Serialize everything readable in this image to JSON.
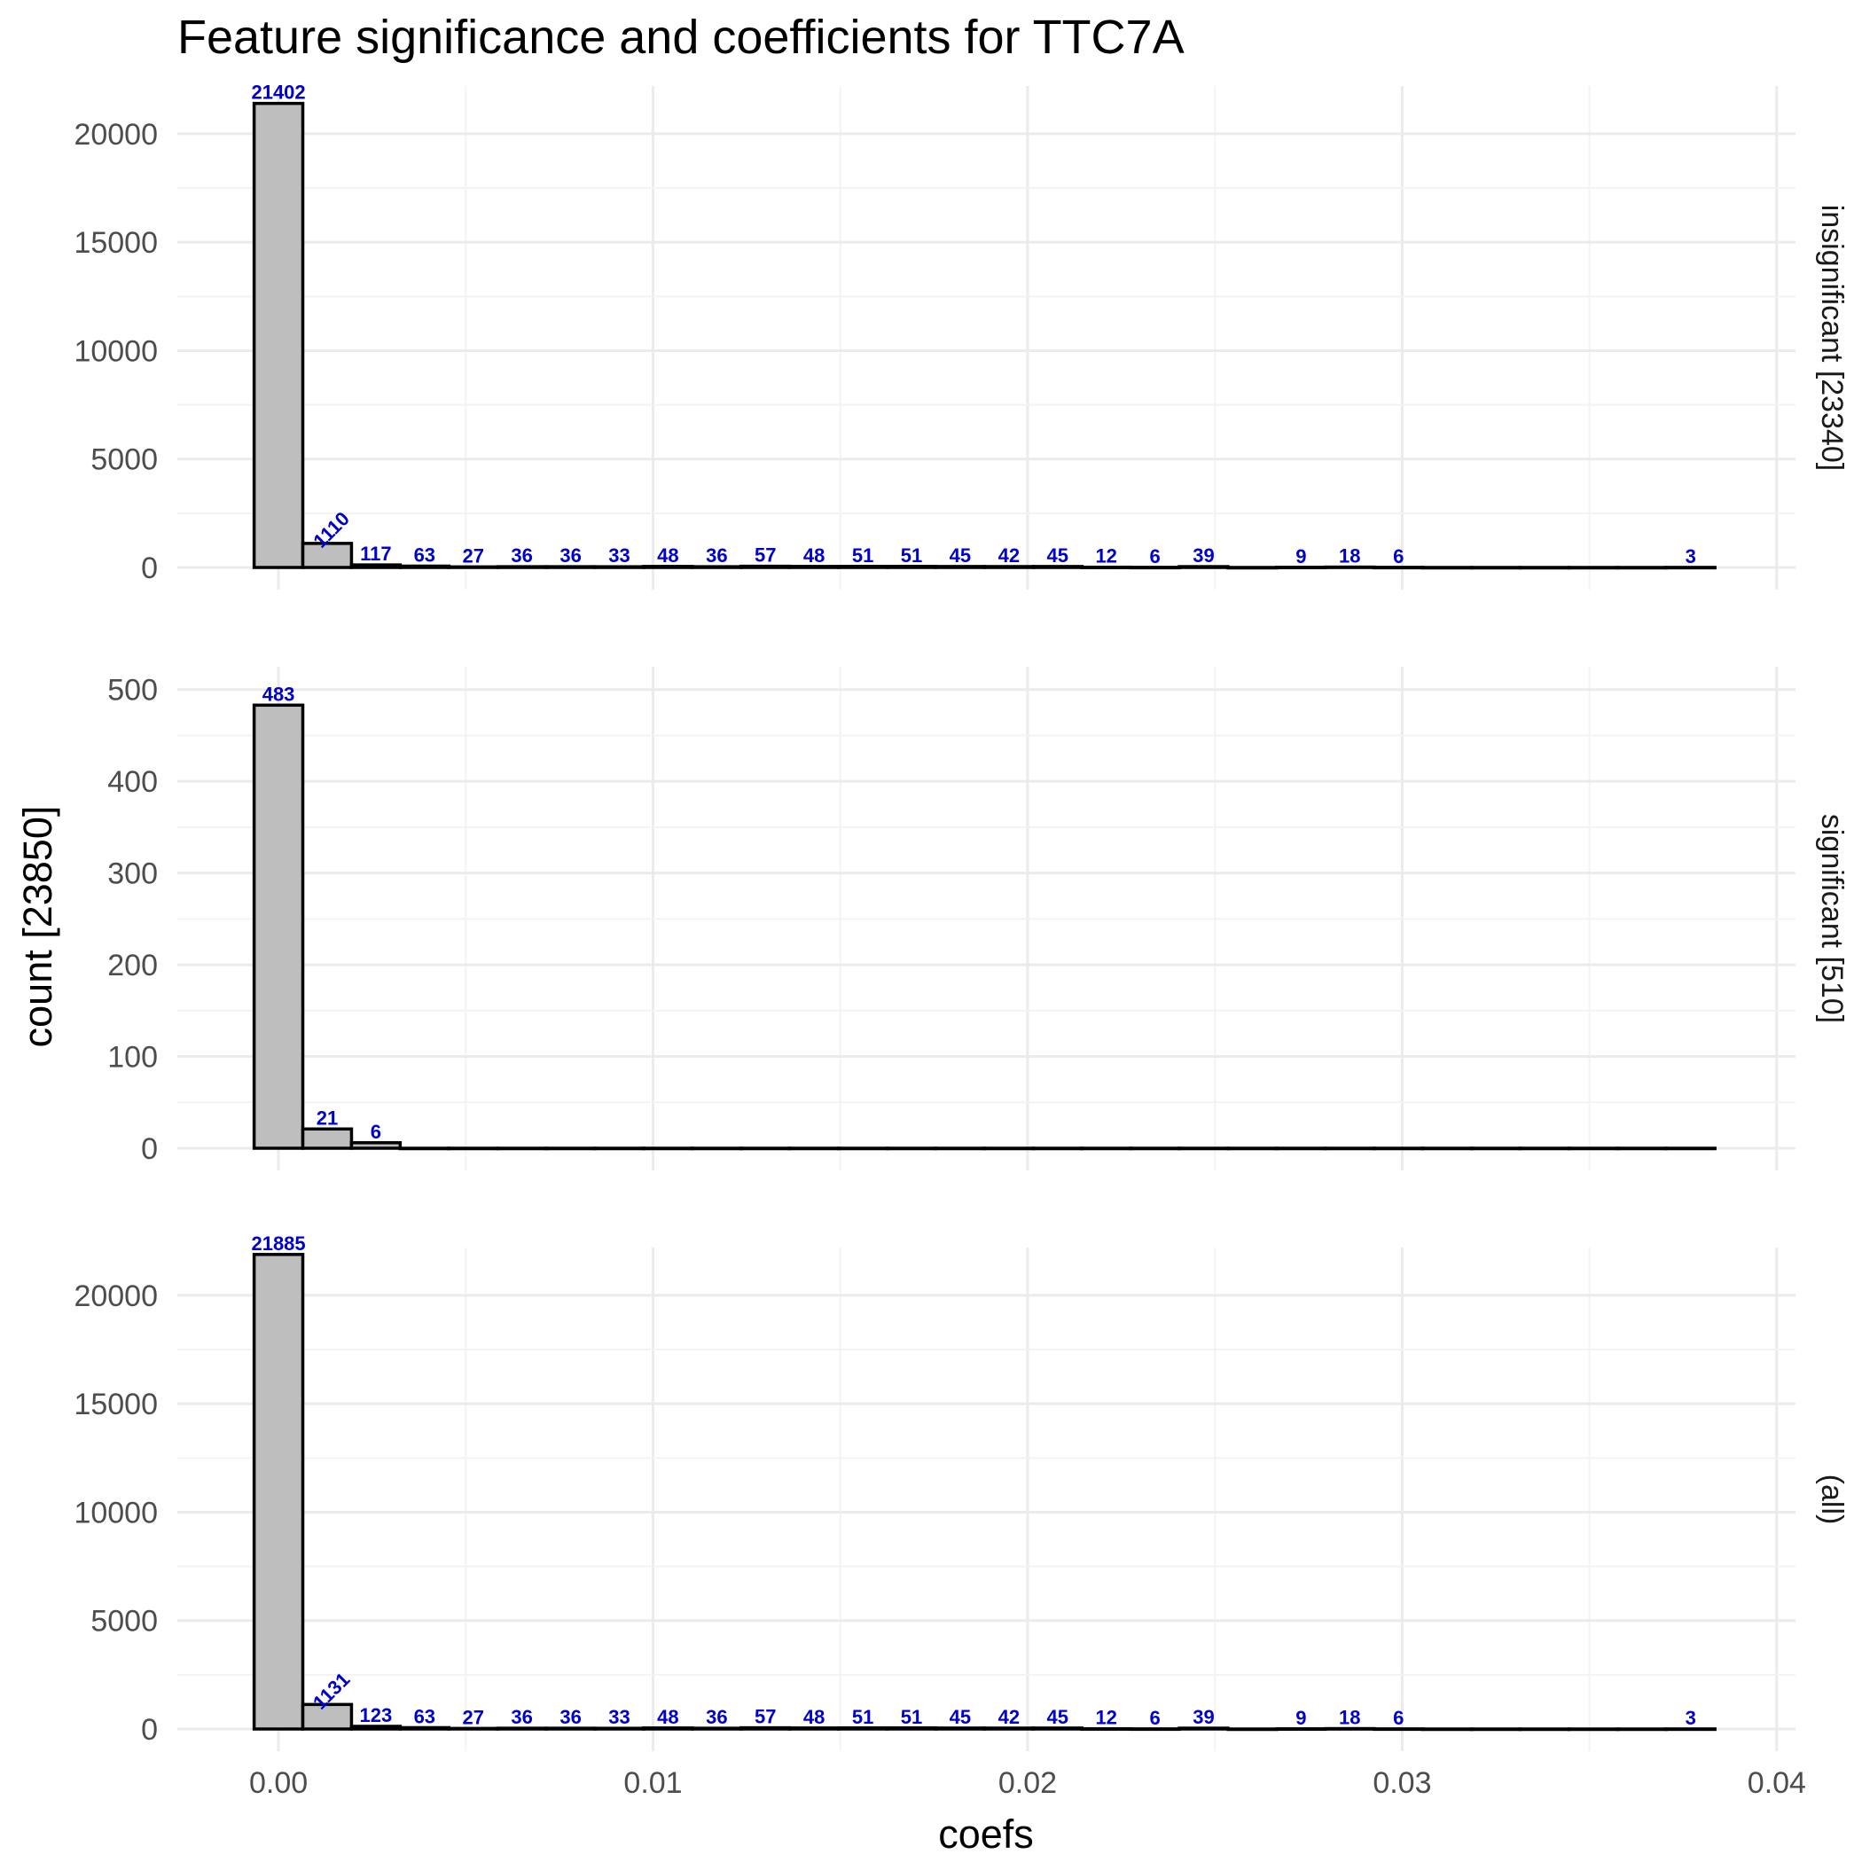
{
  "colors": {
    "bar_fill": "#bebebe",
    "bar_stroke": "#000000",
    "label": "#0000cc",
    "grid_major": "#ebebeb",
    "grid_minor": "#f3f3f3"
  },
  "chart_data": {
    "type": "bar",
    "title": "Feature significance and coefficients for TTC7A",
    "xlabel": "coefs",
    "ylabel": "count [23850]",
    "xlim": [
      -0.0027,
      0.0405
    ],
    "xticks": [
      "0.00",
      "0.01",
      "0.02",
      "0.03",
      "0.04"
    ],
    "bin_width": 0.0013,
    "bin_start": -0.00065,
    "grid": true,
    "facets": [
      {
        "strip": "insignificant [23340]",
        "ylim": [
          0,
          22000
        ],
        "yticks": [
          "0",
          "5000",
          "10000",
          "15000",
          "20000"
        ],
        "counts": [
          21402,
          1110,
          117,
          63,
          27,
          36,
          36,
          33,
          48,
          36,
          57,
          48,
          51,
          51,
          45,
          42,
          45,
          12,
          6,
          39,
          0,
          9,
          18,
          6,
          0,
          0,
          0,
          0,
          0,
          3
        ],
        "labels": [
          "21402",
          "1110",
          "117",
          "63",
          "27",
          "36",
          "36",
          "33",
          "48",
          "36",
          "57",
          "48",
          "51",
          "51",
          "45",
          "42",
          "45",
          "12",
          "6",
          "39",
          "",
          "9",
          "18",
          "6",
          "",
          "",
          "",
          "",
          "",
          "3"
        ]
      },
      {
        "strip": "significant [510]",
        "ylim": [
          0,
          520
        ],
        "yticks": [
          "0",
          "100",
          "200",
          "300",
          "400",
          "500"
        ],
        "counts": [
          483,
          21,
          6,
          0,
          0,
          0,
          0,
          0,
          0,
          0,
          0,
          0,
          0,
          0,
          0,
          0,
          0,
          0,
          0,
          0,
          0,
          0,
          0,
          0,
          0,
          0,
          0,
          0,
          0,
          0
        ],
        "labels": [
          "483",
          "21",
          "6",
          "",
          "",
          "",
          "",
          "",
          "",
          "",
          "",
          "",
          "",
          "",
          "",
          "",
          "",
          "",
          "",
          "",
          "",
          "",
          "",
          "",
          "",
          "",
          "",
          "",
          "",
          ""
        ]
      },
      {
        "strip": "(all)",
        "ylim": [
          0,
          22000
        ],
        "yticks": [
          "0",
          "5000",
          "10000",
          "15000",
          "20000"
        ],
        "counts": [
          21885,
          1131,
          123,
          63,
          27,
          36,
          36,
          33,
          48,
          36,
          57,
          48,
          51,
          51,
          45,
          42,
          45,
          12,
          6,
          39,
          0,
          9,
          18,
          6,
          0,
          0,
          0,
          0,
          0,
          3
        ],
        "labels": [
          "21885",
          "1131",
          "123",
          "63",
          "27",
          "36",
          "36",
          "33",
          "48",
          "36",
          "57",
          "48",
          "51",
          "51",
          "45",
          "42",
          "45",
          "12",
          "6",
          "39",
          "",
          "9",
          "18",
          "6",
          "",
          "",
          "",
          "",
          "",
          "3"
        ]
      }
    ]
  }
}
